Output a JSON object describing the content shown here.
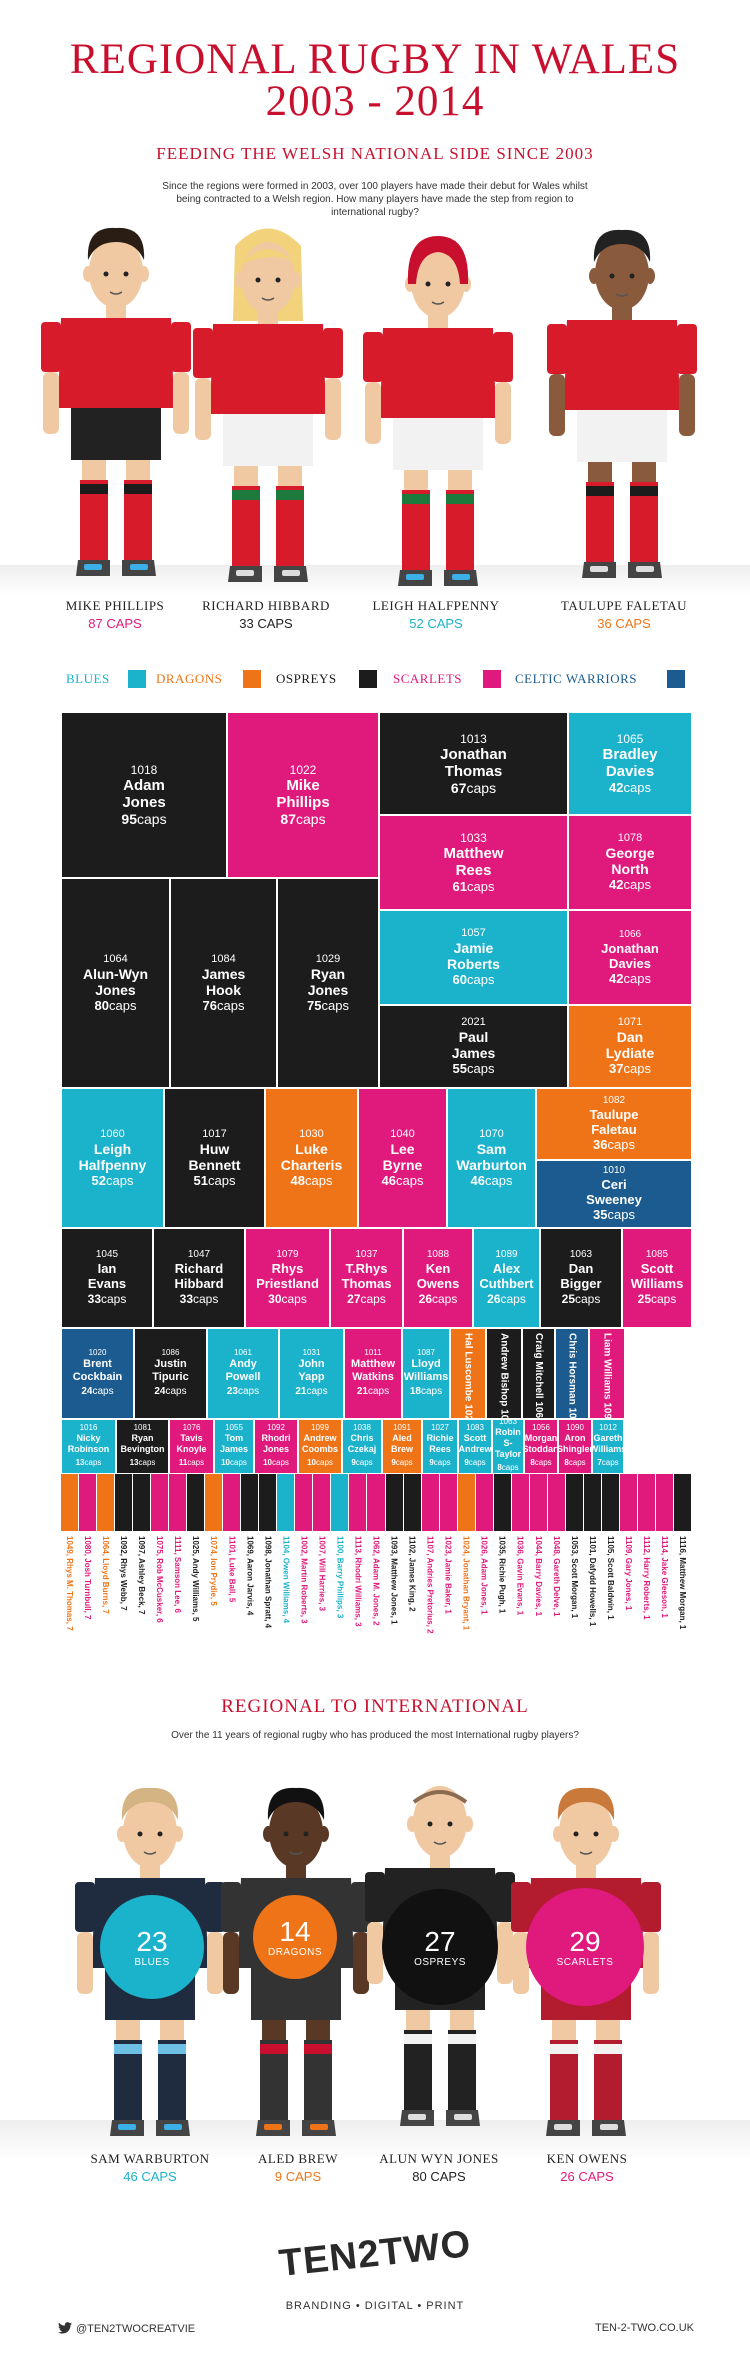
{
  "header": {
    "title_line1": "REGIONAL RUGBY IN WALES",
    "title_line2": "2003 - 2014",
    "subtitle": "FEEDING THE WELSH NATIONAL SIDE SINCE 2003",
    "intro": "Since the regions were formed in 2003, over 100 players have made their debut for Wales whilst being contracted to a Welsh region. How many players have made the step from region to international rugby?"
  },
  "colors": {
    "blues": "#1bb2cc",
    "dragons": "#ef7418",
    "ospreys": "#1c1c1c",
    "scarlets": "#e0197c",
    "celtic_warriors": "#1b5b8f",
    "title_red": "#c8102e"
  },
  "top_players": [
    {
      "name": "MIKE PHILLIPS",
      "caps": "87 CAPS",
      "color": "#e0197c"
    },
    {
      "name": "RICHARD HIBBARD",
      "caps": "33 CAPS",
      "color": "#222222"
    },
    {
      "name": "LEIGH HALFPENNY",
      "caps": "52 CAPS",
      "color": "#1bb2cc"
    },
    {
      "name": "TAULUPE FALETAU",
      "caps": "36 CAPS",
      "color": "#ef7418"
    }
  ],
  "legend": [
    {
      "label": "BLUES",
      "color": "#1bb2cc"
    },
    {
      "label": "DRAGONS",
      "color": "#ef7418"
    },
    {
      "label": "OSPREYS",
      "color": "#1c1c1c"
    },
    {
      "label": "SCARLETS",
      "color": "#e0197c"
    },
    {
      "label": "CELTIC WARRIORS",
      "color": "#1b5b8f"
    }
  ],
  "caps_word": "caps",
  "chart_data": {
    "type": "treemap",
    "value_unit": "caps",
    "players": [
      {
        "id": "1018",
        "name": "Adam Jones",
        "caps": 95,
        "region": "ospreys"
      },
      {
        "id": "1022",
        "name": "Mike Phillips",
        "caps": 87,
        "region": "scarlets"
      },
      {
        "id": "1013",
        "name": "Jonathan Thomas",
        "caps": 67,
        "region": "ospreys"
      },
      {
        "id": "1065",
        "name": "Bradley Davies",
        "caps": 42,
        "region": "blues"
      },
      {
        "id": "1033",
        "name": "Matthew Rees",
        "caps": 61,
        "region": "scarlets"
      },
      {
        "id": "1078",
        "name": "George North",
        "caps": 42,
        "region": "scarlets"
      },
      {
        "id": "1064",
        "name": "Alun-Wyn Jones",
        "caps": 80,
        "region": "ospreys"
      },
      {
        "id": "1084",
        "name": "James Hook",
        "caps": 76,
        "region": "ospreys"
      },
      {
        "id": "1029",
        "name": "Ryan Jones",
        "caps": 75,
        "region": "ospreys"
      },
      {
        "id": "1057",
        "name": "Jamie Roberts",
        "caps": 60,
        "region": "blues"
      },
      {
        "id": "1066",
        "name": "Jonathan Davies",
        "caps": 42,
        "region": "scarlets"
      },
      {
        "id": "2021",
        "name": "Paul James",
        "caps": 55,
        "region": "ospreys"
      },
      {
        "id": "1071",
        "name": "Dan Lydiate",
        "caps": 37,
        "region": "dragons"
      },
      {
        "id": "1060",
        "name": "Leigh Halfpenny",
        "caps": 52,
        "region": "blues"
      },
      {
        "id": "1017",
        "name": "Huw Bennett",
        "caps": 51,
        "region": "ospreys"
      },
      {
        "id": "1030",
        "name": "Luke Charteris",
        "caps": 48,
        "region": "dragons"
      },
      {
        "id": "1040",
        "name": "Lee Byrne",
        "caps": 46,
        "region": "scarlets"
      },
      {
        "id": "1070",
        "name": "Sam Warburton",
        "caps": 46,
        "region": "blues"
      },
      {
        "id": "1082",
        "name": "Taulupe Faletau",
        "caps": 36,
        "region": "dragons"
      },
      {
        "id": "1010",
        "name": "Ceri Sweeney",
        "caps": 35,
        "region": "celtic_warriors"
      },
      {
        "id": "1045",
        "name": "Ian Evans",
        "caps": 33,
        "region": "ospreys"
      },
      {
        "id": "1047",
        "name": "Richard Hibbard",
        "caps": 33,
        "region": "ospreys"
      },
      {
        "id": "1079",
        "name": "Rhys Priestland",
        "caps": 30,
        "region": "scarlets"
      },
      {
        "id": "1037",
        "name": "T.Rhys Thomas",
        "caps": 27,
        "region": "scarlets"
      },
      {
        "id": "1088",
        "name": "Ken Owens",
        "caps": 26,
        "region": "scarlets"
      },
      {
        "id": "1089",
        "name": "Alex Cuthbert",
        "caps": 26,
        "region": "blues"
      },
      {
        "id": "1063",
        "name": "Dan Bigger",
        "caps": 25,
        "region": "ospreys"
      },
      {
        "id": "1085",
        "name": "Scott Williams",
        "caps": 25,
        "region": "scarlets"
      },
      {
        "id": "1020",
        "name": "Brent Cockbain",
        "caps": 24,
        "region": "celtic_warriors"
      },
      {
        "id": "1086",
        "name": "Justin Tipuric",
        "caps": 24,
        "region": "ospreys"
      },
      {
        "id": "1061",
        "name": "Andy Powell",
        "caps": 23,
        "region": "blues"
      },
      {
        "id": "1031",
        "name": "John Yapp",
        "caps": 21,
        "region": "blues"
      },
      {
        "id": "1011",
        "name": "Matthew Watkins",
        "caps": 21,
        "region": "scarlets"
      },
      {
        "id": "1087",
        "name": "Lloyd Williams",
        "caps": 18,
        "region": "blues"
      },
      {
        "id": "1027",
        "name": "Hal Luscombe",
        "caps": 18,
        "region": "dragons"
      },
      {
        "id": "1077",
        "name": "Andrew Bishop",
        "caps": 16,
        "region": "ospreys"
      },
      {
        "id": "1062",
        "name": "Craig Mitchell",
        "caps": 15,
        "region": "ospreys"
      },
      {
        "id": "1041",
        "name": "Chris Horsman",
        "caps": 14,
        "region": "celtic_warriors"
      },
      {
        "id": "1095",
        "name": "Liam Williams",
        "caps": 14,
        "region": "scarlets"
      },
      {
        "id": "1016",
        "name": "Nicky Robinson",
        "caps": 13,
        "region": "blues"
      },
      {
        "id": "1081",
        "name": "Ryan Bevington",
        "caps": 13,
        "region": "ospreys"
      },
      {
        "id": "1076",
        "name": "Tavis Knoyle",
        "caps": 11,
        "region": "scarlets"
      },
      {
        "id": "1055",
        "name": "Tom James",
        "caps": 10,
        "region": "blues"
      },
      {
        "id": "1092",
        "name": "Rhodri Jones",
        "caps": 10,
        "region": "scarlets"
      },
      {
        "id": "1099",
        "name": "Andrew Coombs",
        "caps": 10,
        "region": "dragons"
      },
      {
        "id": "1038",
        "name": "Chris Czekaj",
        "caps": 9,
        "region": "blues"
      },
      {
        "id": "1091",
        "name": "Aled Brew",
        "caps": 9,
        "region": "dragons"
      },
      {
        "id": "1027",
        "name": "Richie Rees",
        "caps": 9,
        "region": "blues"
      },
      {
        "id": "1083",
        "name": "Scott Andrew",
        "caps": 9,
        "region": "blues"
      },
      {
        "id": "1063",
        "name": "Robin S-Taylor",
        "caps": 8,
        "region": "blues"
      },
      {
        "id": "1056",
        "name": "Morgan Stoddart",
        "caps": 8,
        "region": "scarlets"
      },
      {
        "id": "1090",
        "name": "Aron Shingler",
        "caps": 8,
        "region": "scarlets"
      },
      {
        "id": "1012",
        "name": "Gareth Williams",
        "caps": 7,
        "region": "blues"
      }
    ],
    "small_players": [
      {
        "label": "1049, Rhys M. Thomas, 7",
        "region": "dragons"
      },
      {
        "label": "1080, Josh Turnbull, 7",
        "region": "scarlets"
      },
      {
        "label": "1064, Lloyd Burns, 7",
        "region": "dragons"
      },
      {
        "label": "1092, Rhys Webb, 7",
        "region": "ospreys"
      },
      {
        "label": "1097, Ashley Beck, 7",
        "region": "ospreys"
      },
      {
        "label": "1075, Rob McCusker, 6",
        "region": "scarlets"
      },
      {
        "label": "1111, Samson Lee, 6",
        "region": "scarlets"
      },
      {
        "label": "1025, Andy Williams, 5",
        "region": "ospreys"
      },
      {
        "label": "1074, Ion Prydie, 5",
        "region": "dragons"
      },
      {
        "label": "1101, Luke Ball, 5",
        "region": "scarlets"
      },
      {
        "label": "1069, Aaron Jarvis, 4",
        "region": "ospreys"
      },
      {
        "label": "1098, Jonathan Spratt, 4",
        "region": "ospreys"
      },
      {
        "label": "1104, Owen Williams, 4",
        "region": "blues"
      },
      {
        "label": "1002, Martin Roberts, 3",
        "region": "scarlets"
      },
      {
        "label": "1007, Will Harries, 3",
        "region": "scarlets"
      },
      {
        "label": "1100, Barry Phillips, 3",
        "region": "blues"
      },
      {
        "label": "1113, Rhodri Williams, 3",
        "region": "scarlets"
      },
      {
        "label": "1062, Adam M. Jones, 2",
        "region": "scarlets"
      },
      {
        "label": "1093, Matthew Jones, 1",
        "region": "ospreys"
      },
      {
        "label": "1102, James King, 2",
        "region": "ospreys"
      },
      {
        "label": "1107, Andries Pretorius, 2",
        "region": "scarlets"
      },
      {
        "label": "1023, Jamie Baker, 1",
        "region": "scarlets"
      },
      {
        "label": "1024, Jonathan Bryant, 1",
        "region": "dragons"
      },
      {
        "label": "1026, Adam Jones, 1",
        "region": "scarlets"
      },
      {
        "label": "1035, Richie Pugh, 1",
        "region": "ospreys"
      },
      {
        "label": "1036, Gavin Evans, 1",
        "region": "scarlets"
      },
      {
        "label": "1044, Barry Davies, 1",
        "region": "scarlets"
      },
      {
        "label": "1048, Gareth Delve, 1",
        "region": "scarlets"
      },
      {
        "label": "1053, Scott Morgan, 1",
        "region": "ospreys"
      },
      {
        "label": "1101, Dafydd Howells, 1",
        "region": "ospreys"
      },
      {
        "label": "1105, Scott Baldwin, 1",
        "region": "ospreys"
      },
      {
        "label": "1109, Gary Jones, 1",
        "region": "scarlets"
      },
      {
        "label": "1112, Harry Roberts, 1",
        "region": "scarlets"
      },
      {
        "label": "1114, Jake Gleeson, 1",
        "region": "scarlets"
      },
      {
        "label": "1116, Matthew Morgan, 1",
        "region": "ospreys"
      }
    ]
  },
  "section2": {
    "title": "REGIONAL TO INTERNATIONAL",
    "intro": "Over the 11 years of regional rugby who has produced the most International rugby players?",
    "regions": [
      {
        "count": "23",
        "label": "BLUES",
        "color": "#1bb2cc",
        "player": "SAM WARBURTON",
        "caps": "46 CAPS"
      },
      {
        "count": "14",
        "label": "DRAGONS",
        "color": "#ef7418",
        "player": "ALED BREW",
        "caps": "9 CAPS"
      },
      {
        "count": "27",
        "label": "OSPREYS",
        "color": "#1c1c1c",
        "player": "ALUN WYN JONES",
        "caps": "80 CAPS"
      },
      {
        "count": "29",
        "label": "SCARLETS",
        "color": "#e0197c",
        "player": "KEN OWENS",
        "caps": "26 CAPS"
      }
    ]
  },
  "footer": {
    "logo": "TEN2TWO",
    "tagline": "BRANDING • DIGITAL • PRINT",
    "twitter": "@TEN2TWOCREATVIE",
    "website": "TEN-2-TWO.CO.UK"
  }
}
